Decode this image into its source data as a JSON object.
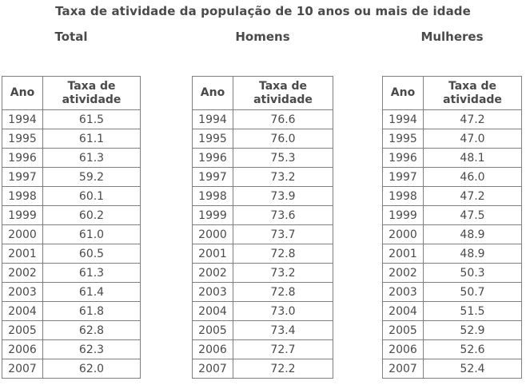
{
  "page": {
    "title": "Taxa de atividade da população de 10 anos ou mais de idade",
    "background_color": "#ffffff",
    "text_color": "#4a4a4a",
    "border_color": "#7f7f7f"
  },
  "tables": [
    {
      "subtitle": "Total",
      "columns": [
        "Ano",
        "Taxa de atividade"
      ],
      "rows": [
        [
          "1994",
          "61.5"
        ],
        [
          "1995",
          "61.1"
        ],
        [
          "1996",
          "61.3"
        ],
        [
          "1997",
          "59.2"
        ],
        [
          "1998",
          "60.1"
        ],
        [
          "1999",
          "60.2"
        ],
        [
          "2000",
          "61.0"
        ],
        [
          "2001",
          "60.5"
        ],
        [
          "2002",
          "61.3"
        ],
        [
          "2003",
          "61.4"
        ],
        [
          "2004",
          "61.8"
        ],
        [
          "2005",
          "62.8"
        ],
        [
          "2006",
          "62.3"
        ],
        [
          "2007",
          "62.0"
        ]
      ]
    },
    {
      "subtitle": "Homens",
      "columns": [
        "Ano",
        "Taxa de atividade"
      ],
      "rows": [
        [
          "1994",
          "76.6"
        ],
        [
          "1995",
          "76.0"
        ],
        [
          "1996",
          "75.3"
        ],
        [
          "1997",
          "73.2"
        ],
        [
          "1998",
          "73.9"
        ],
        [
          "1999",
          "73.6"
        ],
        [
          "2000",
          "73.7"
        ],
        [
          "2001",
          "72.8"
        ],
        [
          "2002",
          "73.2"
        ],
        [
          "2003",
          "72.8"
        ],
        [
          "2004",
          "73.0"
        ],
        [
          "2005",
          "73.4"
        ],
        [
          "2006",
          "72.7"
        ],
        [
          "2007",
          "72.2"
        ]
      ]
    },
    {
      "subtitle": "Mulheres",
      "columns": [
        "Ano",
        "Taxa de atividade"
      ],
      "rows": [
        [
          "1994",
          "47.2"
        ],
        [
          "1995",
          "47.0"
        ],
        [
          "1996",
          "48.1"
        ],
        [
          "1997",
          "46.0"
        ],
        [
          "1998",
          "47.2"
        ],
        [
          "1999",
          "47.5"
        ],
        [
          "2000",
          "48.9"
        ],
        [
          "2001",
          "48.9"
        ],
        [
          "2002",
          "50.3"
        ],
        [
          "2003",
          "50.7"
        ],
        [
          "2004",
          "51.5"
        ],
        [
          "2005",
          "52.9"
        ],
        [
          "2006",
          "52.6"
        ],
        [
          "2007",
          "52.4"
        ]
      ]
    }
  ],
  "chart_data": [
    {
      "type": "table",
      "title": "Taxa de atividade da população de 10 anos ou mais de idade — Total",
      "columns": [
        "Ano",
        "Taxa de atividade"
      ],
      "x": [
        1994,
        1995,
        1996,
        1997,
        1998,
        1999,
        2000,
        2001,
        2002,
        2003,
        2004,
        2005,
        2006,
        2007
      ],
      "values": [
        61.5,
        61.1,
        61.3,
        59.2,
        60.1,
        60.2,
        61.0,
        60.5,
        61.3,
        61.4,
        61.8,
        62.8,
        62.3,
        62.0
      ]
    },
    {
      "type": "table",
      "title": "Taxa de atividade da população de 10 anos ou mais de idade — Homens",
      "columns": [
        "Ano",
        "Taxa de atividade"
      ],
      "x": [
        1994,
        1995,
        1996,
        1997,
        1998,
        1999,
        2000,
        2001,
        2002,
        2003,
        2004,
        2005,
        2006,
        2007
      ],
      "values": [
        76.6,
        76.0,
        75.3,
        73.2,
        73.9,
        73.6,
        73.7,
        72.8,
        73.2,
        72.8,
        73.0,
        73.4,
        72.7,
        72.2
      ]
    },
    {
      "type": "table",
      "title": "Taxa de atividade da população de 10 anos ou mais de idade — Mulheres",
      "columns": [
        "Ano",
        "Taxa de atividade"
      ],
      "x": [
        1994,
        1995,
        1996,
        1997,
        1998,
        1999,
        2000,
        2001,
        2002,
        2003,
        2004,
        2005,
        2006,
        2007
      ],
      "values": [
        47.2,
        47.0,
        48.1,
        46.0,
        47.2,
        47.5,
        48.9,
        48.9,
        50.3,
        50.7,
        51.5,
        52.9,
        52.6,
        52.4
      ]
    }
  ]
}
